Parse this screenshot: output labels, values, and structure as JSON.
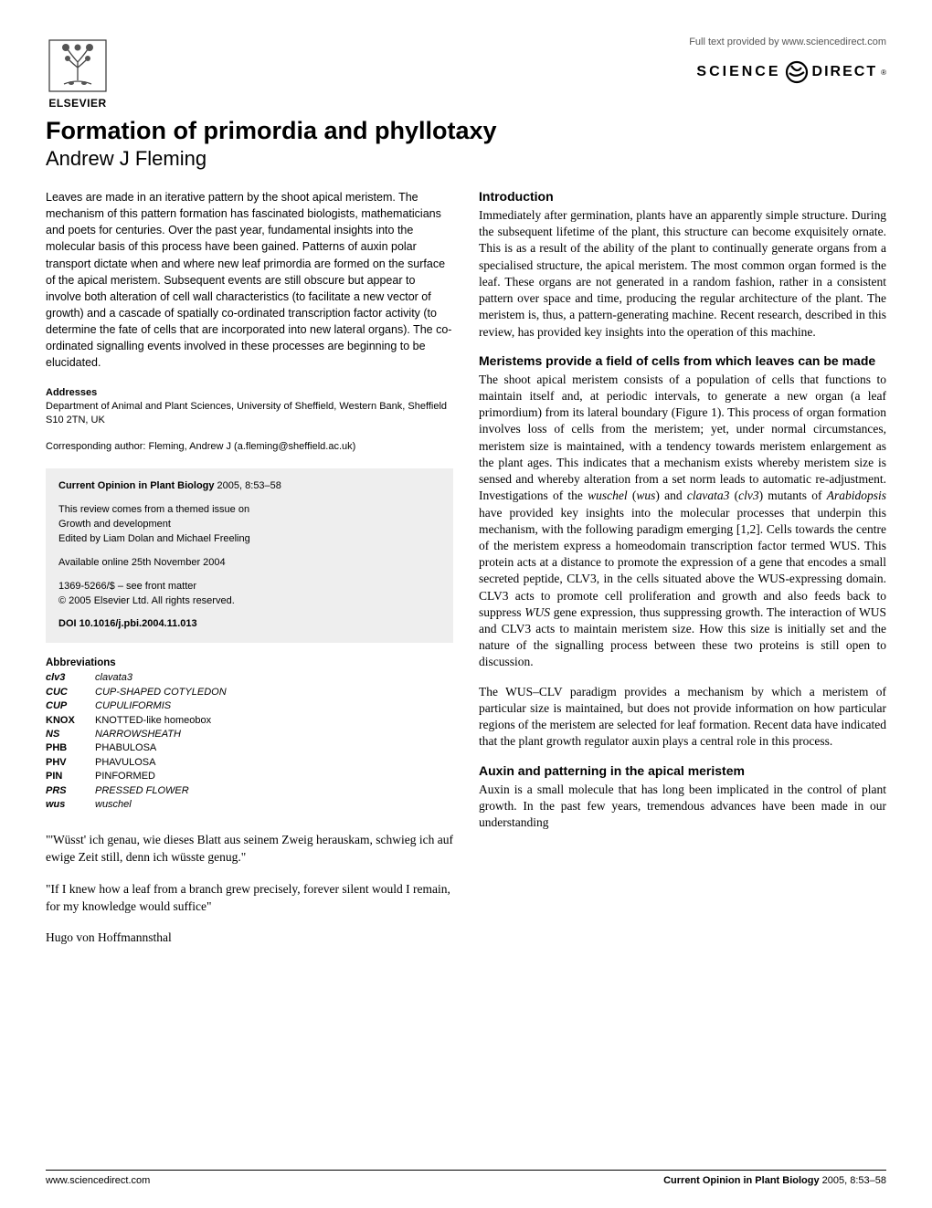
{
  "header": {
    "fulltext": "Full text provided by www.sciencedirect.com",
    "elsevier": "ELSEVIER",
    "sd_science": "SCIENCE",
    "sd_direct": "DIRECT",
    "sd_reg": "®"
  },
  "title": "Formation of primordia and phyllotaxy",
  "author": "Andrew J Fleming",
  "abstract": "Leaves are made in an iterative pattern by the shoot apical meristem. The mechanism of this pattern formation has fascinated biologists, mathematicians and poets for centuries. Over the past year, fundamental insights into the molecular basis of this process have been gained. Patterns of auxin polar transport dictate when and where new leaf primordia are formed on the surface of the apical meristem. Subsequent events are still obscure but appear to involve both alteration of cell wall characteristics (to facilitate a new vector of growth) and a cascade of spatially co-ordinated transcription factor activity (to determine the fate of cells that are incorporated into new lateral organs). The co-ordinated signalling events involved in these processes are beginning to be elucidated.",
  "addresses": {
    "head": "Addresses",
    "body": "Department of Animal and Plant Sciences, University of Sheffield, Western Bank, Sheffield S10 2TN, UK",
    "corresponding": "Corresponding author: Fleming, Andrew J (a.fleming@sheffield.ac.uk)"
  },
  "infobox": {
    "journal": "Current Opinion in Plant Biology",
    "year_vol_pages": " 2005, 8:53–58",
    "themed1": "This review comes from a themed issue on",
    "themed2": "Growth and development",
    "themed3": "Edited by Liam Dolan and Michael Freeling",
    "available": "Available online 25th November 2004",
    "issn": "1369-5266/$ – see front matter",
    "copyright": "© 2005 Elsevier Ltd. All rights reserved.",
    "doi": "DOI 10.1016/j.pbi.2004.11.013"
  },
  "abbrev": {
    "head": "Abbreviations",
    "rows": [
      {
        "k": "clv3",
        "v": "clavata3",
        "ki": true,
        "vi": true
      },
      {
        "k": "CUC",
        "v": "CUP-SHAPED COTYLEDON",
        "ki": true,
        "vi": true
      },
      {
        "k": "CUP",
        "v": "CUPULIFORMIS",
        "ki": true,
        "vi": true
      },
      {
        "k": "KNOX",
        "v": "KNOTTED-like homeobox",
        "ki": false,
        "vi": false
      },
      {
        "k": "NS",
        "v": "NARROWSHEATH",
        "ki": true,
        "vi": true
      },
      {
        "k": "PHB",
        "v": "PHABULOSA",
        "ki": false,
        "vi": false
      },
      {
        "k": "PHV",
        "v": "PHAVULOSA",
        "ki": false,
        "vi": false
      },
      {
        "k": "PIN",
        "v": "PINFORMED",
        "ki": false,
        "vi": false
      },
      {
        "k": "PRS",
        "v": "PRESSED FLOWER",
        "ki": true,
        "vi": true
      },
      {
        "k": "wus",
        "v": "wuschel",
        "ki": true,
        "vi": true
      }
    ]
  },
  "quotes": {
    "de": "\"'Wüsst' ich genau, wie dieses Blatt aus seinem Zweig herauskam, schwieg ich auf ewige Zeit still, denn ich wüsste genug.\"",
    "en": "\"If I knew how a leaf from a branch grew precisely, forever silent would I remain, for my knowledge would suffice\"",
    "attrib": "Hugo von Hoffmannsthal"
  },
  "sections": {
    "intro_head": "Introduction",
    "intro_body": "Immediately after germination, plants have an apparently simple structure. During the subsequent lifetime of the plant, this structure can become exquisitely ornate. This is as a result of the ability of the plant to continually generate organs from a specialised structure, the apical meristem. The most common organ formed is the leaf. These organs are not generated in a random fashion, rather in a consistent pattern over space and time, producing the regular architecture of the plant. The meristem is, thus, a pattern-generating machine. Recent research, described in this review, has provided key insights into the operation of this machine.",
    "meristem_head": "Meristems provide a field of cells from which leaves can be made",
    "meristem_p1a": "The shoot apical meristem consists of a population of cells that functions to maintain itself and, at periodic intervals, to generate a new organ (a leaf primordium) from its lateral boundary (Figure 1). This process of organ formation involves loss of cells from the meristem; yet, under normal circumstances, meristem size is maintained, with a tendency towards meristem enlargement as the plant ages. This indicates that a mechanism exists whereby meristem size is sensed and whereby alteration from a set norm leads to automatic re-adjustment. Investigations of the ",
    "meristem_wus": "wuschel",
    "meristem_p1b": " (",
    "meristem_wus2": "wus",
    "meristem_p1c": ") and ",
    "meristem_clv": "clavata3",
    "meristem_p1d": " (",
    "meristem_clv2": "clv3",
    "meristem_p1e": ") mutants of ",
    "meristem_arab": "Arabidopsis",
    "meristem_p1f": " have provided key insights into the molecular processes that underpin this mechanism, with the following paradigm emerging [1,2]. Cells towards the centre of the meristem express a homeodomain transcription factor termed WUS. This protein acts at a distance to promote the expression of a gene that encodes a small secreted peptide, CLV3, in the cells situated above the WUS-expressing domain. CLV3 acts to promote cell proliferation and growth and also feeds back to suppress ",
    "meristem_wus3": "WUS",
    "meristem_p1g": " gene expression, thus suppressing growth. The interaction of WUS and CLV3 acts to maintain meristem size. How this size is initially set and the nature of the signalling process between these two proteins is still open to discussion.",
    "meristem_p2": "The WUS–CLV paradigm provides a mechanism by which a meristem of particular size is maintained, but does not provide information on how particular regions of the meristem are selected for leaf formation. Recent data have indicated that the plant growth regulator auxin plays a central role in this process.",
    "auxin_head": "Auxin and patterning in the apical meristem",
    "auxin_body": "Auxin is a small molecule that has long been implicated in the control of plant growth. In the past few years, tremendous advances have been made in our understanding"
  },
  "footer": {
    "left": "www.sciencedirect.com",
    "right_journal": "Current Opinion in Plant Biology",
    "right_rest": " 2005, 8:53–58"
  }
}
